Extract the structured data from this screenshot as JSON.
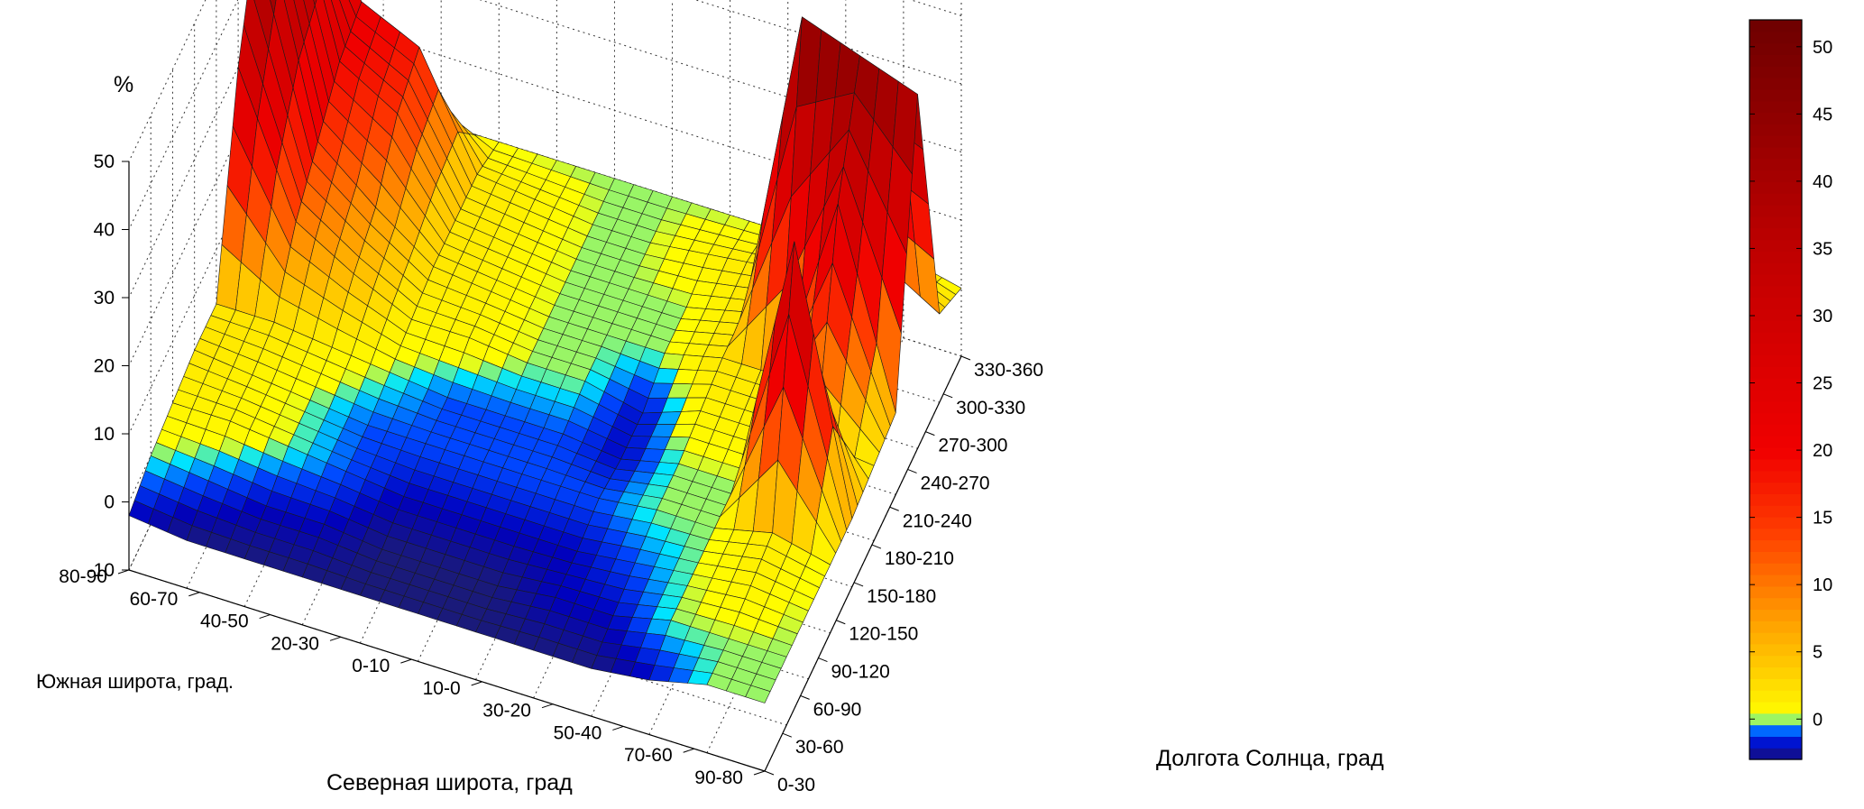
{
  "chart_data": {
    "type": "surface",
    "zlabel": "%",
    "xlabel": "Долгота Солнца, град",
    "ylabel_north": "Северная широта, град",
    "ylabel_south": "Южная широта, град.",
    "x_categories": [
      "0-30",
      "30-60",
      "60-90",
      "90-120",
      "120-150",
      "150-180",
      "180-210",
      "210-240",
      "240-270",
      "270-300",
      "300-330",
      "330-360"
    ],
    "y_categories": [
      "80-90",
      "60-70",
      "40-50",
      "20-30",
      "0-10",
      "10-0",
      "30-20",
      "50-40",
      "70-60",
      "90-80"
    ],
    "z_ticks": [
      "-10",
      "0",
      "10",
      "20",
      "30",
      "40",
      "50"
    ],
    "zlim": [
      -10,
      50
    ],
    "colorbar_ticks": [
      "0",
      "5",
      "10",
      "15",
      "20",
      "25",
      "30",
      "35",
      "40",
      "45",
      "50"
    ],
    "colorbar_range": [
      -3,
      52
    ],
    "colormap": "hot-jet",
    "grid": true,
    "series": [
      {
        "y": "80-90",
        "values": [
          2,
          2,
          0,
          0,
          0,
          0,
          0,
          0,
          0,
          0,
          2,
          0
        ]
      },
      {
        "y": "60-70",
        "values": [
          35,
          22,
          18,
          2,
          1,
          0,
          0,
          1,
          2,
          2,
          8,
          3
        ]
      },
      {
        "y": "40-50",
        "values": [
          50,
          20,
          15,
          2,
          1,
          0,
          0,
          0,
          2,
          48,
          45,
          42
        ]
      },
      {
        "y": "20-30",
        "values": [
          48,
          15,
          8,
          2,
          1,
          0,
          0,
          0,
          2,
          2,
          30,
          2
        ]
      },
      {
        "y": "0-10",
        "values": [
          30,
          10,
          5,
          1,
          1,
          0,
          0,
          -2,
          1,
          1,
          2,
          1
        ]
      },
      {
        "y": "10-0",
        "values": [
          2,
          2,
          1,
          0,
          -1,
          -1,
          -1,
          -2,
          0,
          0,
          38,
          0
        ]
      },
      {
        "y": "30-20",
        "values": [
          2,
          1,
          0,
          -1,
          -1,
          -1,
          -1,
          -1,
          0,
          0,
          2,
          0
        ]
      },
      {
        "y": "50-40",
        "values": [
          1,
          1,
          0,
          -1,
          -2,
          -2,
          -2,
          -2,
          -1,
          0,
          1,
          0
        ]
      },
      {
        "y": "70-60",
        "values": [
          0,
          -1,
          -2,
          -2,
          -3,
          -3,
          -3,
          -2,
          -2,
          0,
          0,
          0
        ]
      },
      {
        "y": "90-80",
        "values": [
          -2,
          -3,
          -3,
          -3,
          -3,
          -3,
          -3,
          -3,
          -3,
          -2,
          0,
          0
        ]
      }
    ]
  }
}
